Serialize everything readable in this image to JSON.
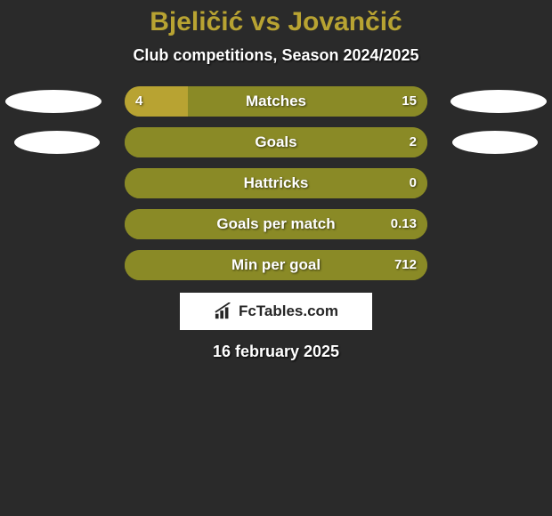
{
  "title": "Bjeličić vs Jovančić",
  "subtitle": "Club competitions, Season 2024/2025",
  "colors": {
    "left": "#b8a332",
    "right": "#8a8a26",
    "track": "#8a8a26",
    "background": "#2a2a2a",
    "text": "#ffffff"
  },
  "bars": [
    {
      "label": "Matches",
      "left_val": "4",
      "right_val": "15",
      "left_pct": 21,
      "right_pct": 79
    },
    {
      "label": "Goals",
      "left_val": "",
      "right_val": "2",
      "left_pct": 0,
      "right_pct": 100
    },
    {
      "label": "Hattricks",
      "left_val": "",
      "right_val": "0",
      "left_pct": 0,
      "right_pct": 100
    },
    {
      "label": "Goals per match",
      "left_val": "",
      "right_val": "0.13",
      "left_pct": 0,
      "right_pct": 100
    },
    {
      "label": "Min per goal",
      "left_val": "",
      "right_val": "712",
      "left_pct": 0,
      "right_pct": 100
    }
  ],
  "logo": "FcTables.com",
  "date": "16 february 2025"
}
